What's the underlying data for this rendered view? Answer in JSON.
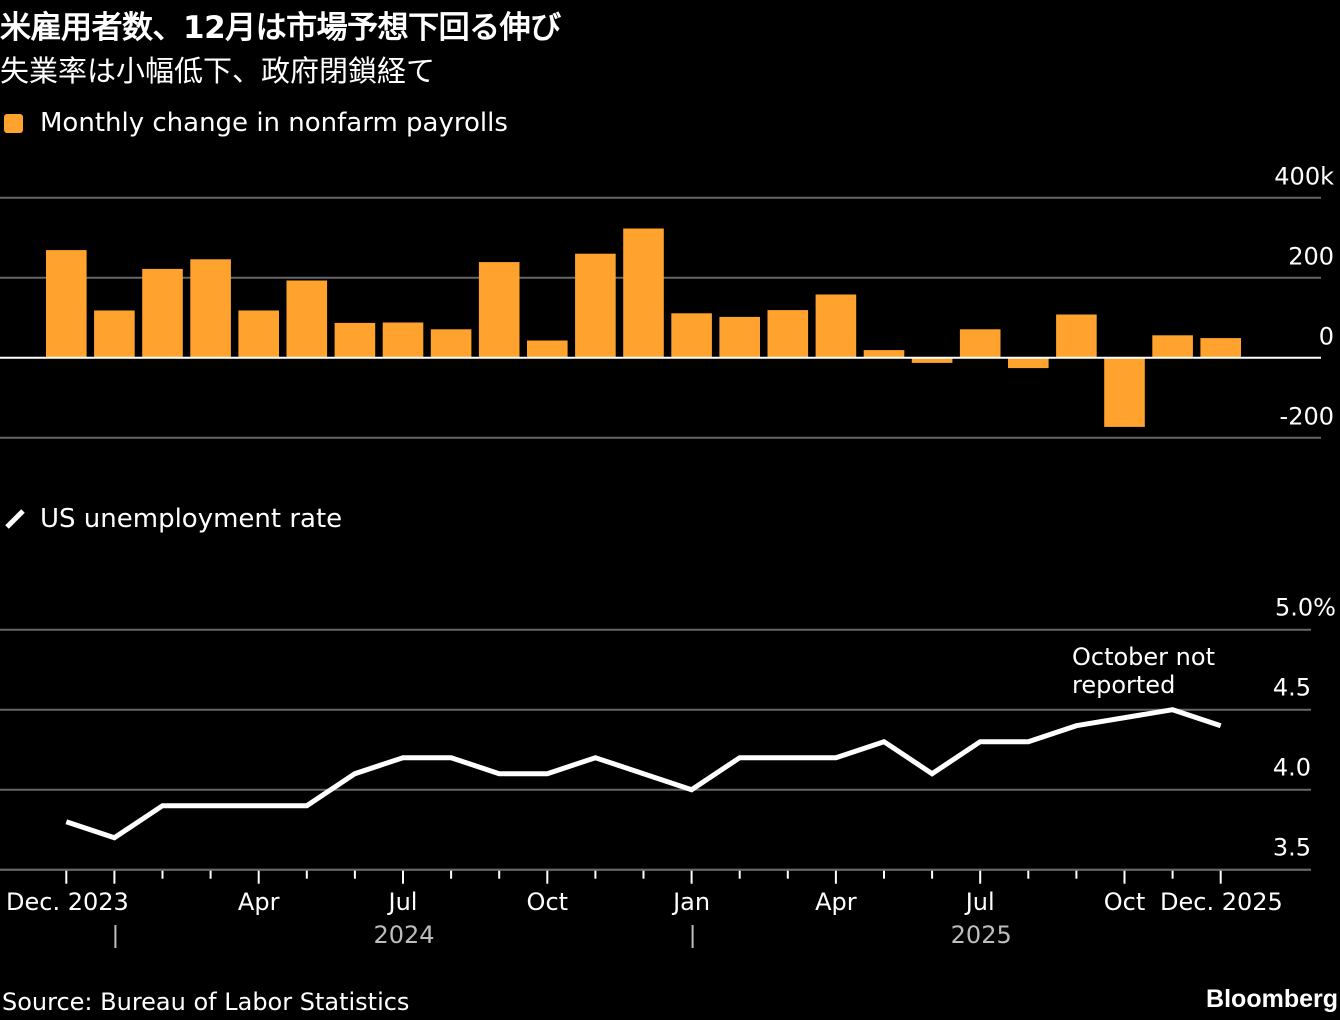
{
  "header": {
    "title": "米雇用者数、12月は市場予想下回る伸び",
    "subtitle": "失業率は小幅低下、政府閉鎖経て"
  },
  "legends": {
    "bar": "Monthly change in nonfarm payrolls",
    "line": "US unemployment rate"
  },
  "footer": {
    "source": "Source: Bureau of Labor Statistics",
    "brand": "Bloomberg"
  },
  "colors": {
    "bar": "#FFA32E",
    "line": "#FFFFFF",
    "grid": "#666666",
    "zero_line": "#FFFFFF",
    "background": "#000000"
  },
  "chart_data": [
    {
      "type": "bar",
      "title": "Monthly change in nonfarm payrolls",
      "xlabel": "",
      "ylabel": "",
      "ylim": [
        -200,
        400
      ],
      "yticks": [
        400,
        200,
        0,
        -200
      ],
      "ytick_labels": [
        "400k",
        "200",
        "0",
        "-200"
      ],
      "grid": true,
      "categories": [
        "Dec 2023",
        "Jan 2024",
        "Feb 2024",
        "Mar 2024",
        "Apr 2024",
        "May 2024",
        "Jun 2024",
        "Jul 2024",
        "Aug 2024",
        "Sep 2024",
        "Oct 2024",
        "Nov 2024",
        "Dec 2024",
        "Jan 2025",
        "Feb 2025",
        "Mar 2025",
        "Apr 2025",
        "May 2025",
        "Jun 2025",
        "Jul 2025",
        "Aug 2025",
        "Sep 2025",
        "Oct 2025",
        "Nov 2025",
        "Dec 2025"
      ],
      "values": [
        269,
        118,
        222,
        246,
        118,
        193,
        87,
        88,
        71,
        239,
        43,
        260,
        323,
        111,
        102,
        119,
        158,
        19,
        -13,
        71,
        -26,
        108,
        -173,
        56,
        49
      ]
    },
    {
      "type": "line",
      "title": "US unemployment rate",
      "xlabel": "",
      "ylabel": "",
      "ylim": [
        3.5,
        5.0
      ],
      "yticks": [
        5.0,
        4.5,
        4.0,
        3.5
      ],
      "ytick_labels": [
        "5.0%",
        "4.5",
        "4.0",
        "3.5"
      ],
      "grid": true,
      "categories": [
        "Dec 2023",
        "Jan 2024",
        "Feb 2024",
        "Mar 2024",
        "Apr 2024",
        "May 2024",
        "Jun 2024",
        "Jul 2024",
        "Aug 2024",
        "Sep 2024",
        "Oct 2024",
        "Nov 2024",
        "Dec 2024",
        "Jan 2025",
        "Feb 2025",
        "Mar 2025",
        "Apr 2025",
        "May 2025",
        "Jun 2025",
        "Jul 2025",
        "Aug 2025",
        "Sep 2025",
        "Oct 2025",
        "Nov 2025",
        "Dec 2025"
      ],
      "values": [
        3.8,
        3.7,
        3.9,
        3.9,
        3.9,
        3.9,
        4.1,
        4.2,
        4.2,
        4.1,
        4.1,
        4.2,
        4.1,
        4.0,
        4.2,
        4.2,
        4.2,
        4.3,
        4.1,
        4.3,
        4.3,
        4.4,
        null,
        4.5,
        4.4
      ],
      "annotation": {
        "text_lines": [
          "October not",
          "reported"
        ],
        "at": "Oct 2025"
      },
      "x_tick_labels": [
        {
          "index": 0,
          "label": "Dec. 2023"
        },
        {
          "index": 4,
          "label": "Apr"
        },
        {
          "index": 7,
          "label": "Jul"
        },
        {
          "index": 10,
          "label": "Oct"
        },
        {
          "index": 13,
          "label": "Jan"
        },
        {
          "index": 16,
          "label": "Apr"
        },
        {
          "index": 19,
          "label": "Jul"
        },
        {
          "index": 22,
          "label": "Oct"
        },
        {
          "index": 24,
          "label": "Dec. 2025"
        }
      ],
      "year_labels": [
        {
          "label": "2024",
          "index": 7
        },
        {
          "label": "2025",
          "index": 19
        }
      ],
      "year_separators": [
        1,
        13
      ]
    }
  ]
}
